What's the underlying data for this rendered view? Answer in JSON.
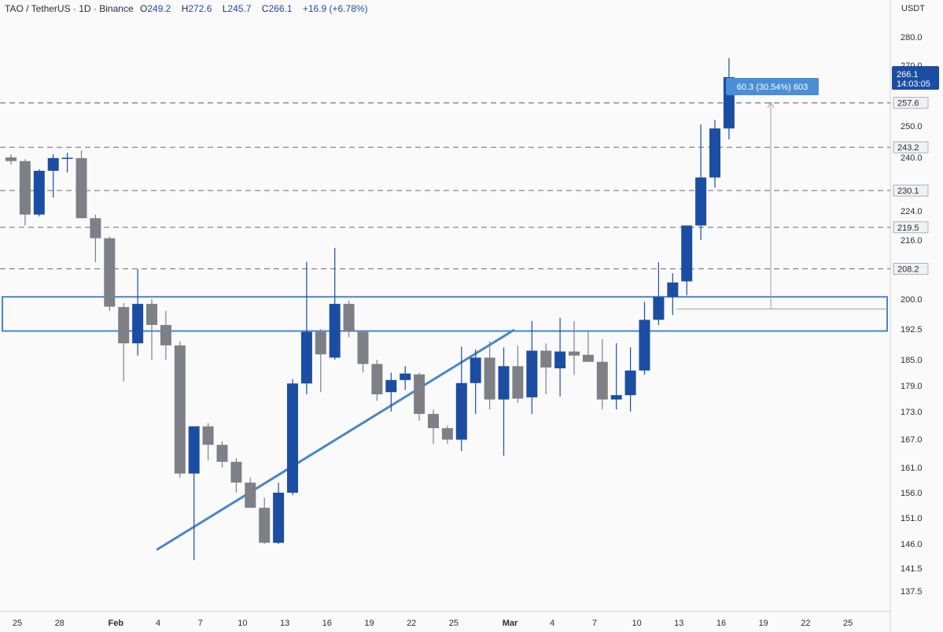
{
  "header": {
    "symbol": "TAO / TetherUS · 1D · Binance",
    "open_label": "O",
    "open": "249.2",
    "high_label": "H",
    "high": "272.6",
    "low_label": "L",
    "low": "245.7",
    "close_label": "C",
    "close": "266.1",
    "change": "+16.9 (+6.78%)"
  },
  "price_axis": {
    "unit": "USDT",
    "ticks": [
      "280.0",
      "270.0",
      "250.0",
      "240.0",
      "224.0",
      "216.0",
      "200.0",
      "192.5",
      "185.0",
      "179.0",
      "173.0",
      "167.0",
      "161.0",
      "156.0",
      "151.0",
      "146.0",
      "141.5",
      "137.5"
    ],
    "current_price": "266.1",
    "countdown": "14:03:05",
    "level_tags": [
      "257.6",
      "243.2",
      "230.1",
      "219.5",
      "208.2"
    ]
  },
  "time_axis": {
    "ticks": [
      "25",
      "28",
      "Feb",
      "4",
      "7",
      "10",
      "13",
      "16",
      "19",
      "22",
      "25",
      "Mar",
      "4",
      "7",
      "10",
      "13",
      "16",
      "19",
      "22",
      "25"
    ]
  },
  "measure_label": "60.3 (30.54%) 603",
  "colors": {
    "up": "#1b4ea3",
    "down": "#7f8087",
    "drawing": "#4a86c8",
    "accent": "#2962ff",
    "dashed": "#7a7a7a"
  },
  "chart_data": {
    "type": "candlestick",
    "ohlc": [
      [
        240.0,
        241.0,
        237.8,
        238.9
      ],
      [
        238.9,
        239.5,
        220.0,
        223.0
      ],
      [
        223.0,
        236.5,
        222.5,
        236.0
      ],
      [
        236.0,
        241.0,
        228.0,
        239.8
      ],
      [
        239.8,
        241.5,
        235.5,
        239.9
      ],
      [
        239.8,
        242.2,
        222.0,
        222.0
      ],
      [
        222.0,
        223.0,
        210.0,
        216.5
      ],
      [
        216.5,
        217.0,
        197.0,
        198.1
      ],
      [
        198.0,
        199.0,
        180.0,
        189.0
      ],
      [
        189.0,
        208.1,
        186.0,
        198.8
      ],
      [
        198.8,
        200.0,
        185.0,
        193.5
      ],
      [
        193.5,
        197.0,
        185.0,
        188.5
      ],
      [
        188.5,
        189.5,
        159.0,
        159.8
      ],
      [
        159.8,
        169.5,
        143.0,
        169.8
      ],
      [
        169.8,
        170.5,
        162.5,
        165.8
      ],
      [
        165.8,
        166.5,
        161.0,
        162.2
      ],
      [
        162.2,
        163.0,
        156.0,
        158.0
      ],
      [
        158.0,
        159.0,
        154.0,
        153.0
      ],
      [
        153.0,
        155.0,
        146.0,
        146.2
      ],
      [
        146.2,
        158.0,
        146.0,
        156.0
      ],
      [
        156.0,
        180.5,
        155.5,
        179.5
      ],
      [
        179.5,
        210.1,
        177.0,
        191.8
      ],
      [
        191.8,
        192.5,
        177.5,
        186.3
      ],
      [
        185.5,
        213.9,
        185.0,
        198.8
      ],
      [
        198.8,
        199.6,
        190.5,
        191.8
      ],
      [
        191.8,
        192.0,
        182.0,
        184.0
      ],
      [
        184.0,
        185.0,
        175.5,
        177.0
      ],
      [
        177.5,
        182.0,
        173.0,
        180.3
      ],
      [
        180.3,
        183.5,
        178.0,
        181.8
      ],
      [
        181.6,
        182.0,
        171.0,
        172.5
      ],
      [
        172.5,
        173.5,
        166.0,
        169.4
      ],
      [
        169.4,
        170.0,
        166.0,
        166.9
      ],
      [
        166.9,
        188.2,
        164.5,
        179.6
      ],
      [
        179.6,
        187.5,
        172.5,
        185.5
      ],
      [
        185.5,
        189.5,
        173.5,
        175.8
      ],
      [
        175.8,
        188.0,
        163.5,
        183.5
      ],
      [
        183.5,
        188.5,
        175.0,
        176.0
      ],
      [
        176.3,
        194.5,
        172.5,
        187.2
      ],
      [
        187.2,
        189.0,
        177.0,
        183.2
      ],
      [
        183.0,
        195.3,
        176.5,
        187.0
      ],
      [
        187.0,
        194.5,
        181.5,
        186.0
      ],
      [
        186.2,
        192.0,
        185.0,
        184.5
      ],
      [
        184.5,
        190.0,
        173.5,
        175.8
      ],
      [
        175.8,
        189.0,
        173.5,
        176.8
      ],
      [
        176.8,
        188.0,
        173.0,
        182.5
      ],
      [
        182.5,
        199.3,
        181.5,
        194.8
      ],
      [
        194.8,
        210.0,
        193.5,
        200.6
      ],
      [
        200.6,
        207.0,
        196.0,
        204.5
      ],
      [
        204.8,
        220.0,
        201.0,
        220.0
      ],
      [
        220.0,
        250.5,
        216.0,
        234.0
      ],
      [
        234.0,
        252.0,
        231.0,
        249.2
      ],
      [
        249.2,
        272.6,
        245.7,
        266.1
      ]
    ],
    "horizontal_levels": [
      257.6,
      243.2,
      230.1,
      219.5,
      208.2
    ],
    "resistance_zone": [
      192.0,
      200.6
    ],
    "ascending_trendline": [
      [
        10.8,
        145.0
      ],
      [
        36.2,
        192.2
      ]
    ],
    "measurement": {
      "from": 197.5,
      "to": 257.8,
      "label": "60.3 (30.54%) 603"
    }
  }
}
